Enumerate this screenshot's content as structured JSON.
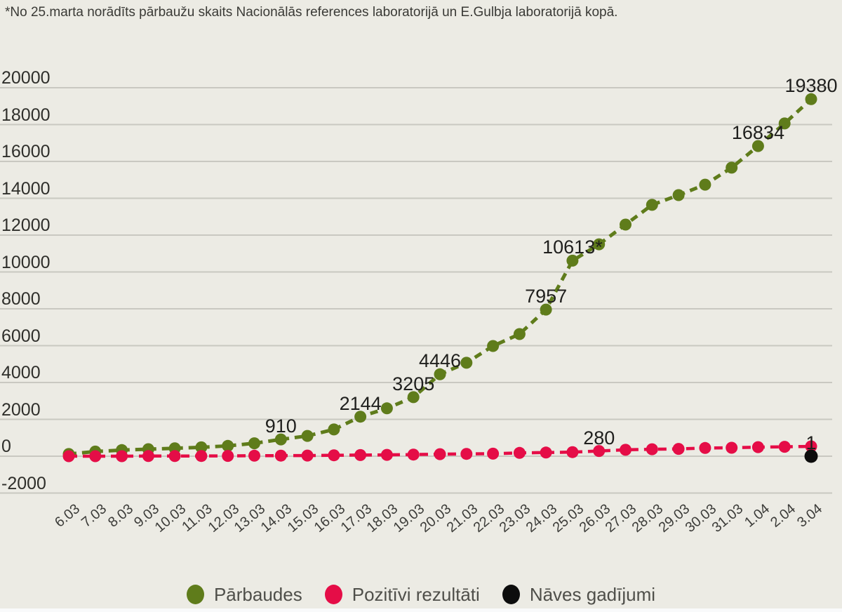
{
  "note": "*No 25.marta norādīts pārbaužu skaits Nacionālās references laboratorijā un E.Gulbja laboratorijā kopā.",
  "colors": {
    "background": "#ecebe4",
    "gridline": "#c9c8c1",
    "parbaudes": "#5f7c1b",
    "pozitivi": "#e50d47",
    "naves": "#0d0d0d",
    "axis_text": "#3b3b38",
    "value_label_text": "#1f1f1d",
    "legend_text": "#4f4f4a"
  },
  "chart_data": {
    "type": "line",
    "title": "",
    "xlabel": "",
    "ylabel": "",
    "ylim": [
      -2000,
      20000
    ],
    "grid": "horizontal",
    "legend_position": "bottom",
    "y_tick_labels": [
      "-2000",
      "0",
      "2000",
      "4000",
      "6000",
      "8000",
      "10000",
      "12000",
      "14000",
      "16000",
      "18000",
      "20000"
    ],
    "categories": [
      "6.03",
      "7.03",
      "8.03",
      "9.03",
      "10.03",
      "11.03",
      "12.03",
      "13.03",
      "14.03",
      "15.03",
      "16.03",
      "17.03",
      "18.03",
      "19.03",
      "20.03",
      "21.03",
      "22.03",
      "23.03",
      "24.03",
      "25.03",
      "26.03",
      "27.03",
      "28.03",
      "29.03",
      "30.03",
      "31.03",
      "1.04",
      "2.04",
      "3.04"
    ],
    "series": [
      {
        "name": "Pārbaudes",
        "key": "parbaudes",
        "color": "#5f7c1b",
        "values": [
          120,
          250,
          330,
          380,
          430,
          480,
          560,
          700,
          910,
          1100,
          1450,
          2144,
          2600,
          3205,
          4446,
          5070,
          5980,
          6630,
          7957,
          10613,
          11500,
          12570,
          13640,
          14170,
          14740,
          15660,
          16834,
          18060,
          19380
        ]
      },
      {
        "name": "Pozitīvi rezultāti",
        "key": "pozitivi",
        "color": "#e50d47",
        "values": [
          1,
          1,
          1,
          6,
          8,
          10,
          17,
          26,
          30,
          34,
          49,
          60,
          71,
          86,
          111,
          124,
          139,
          180,
          197,
          221,
          280,
          347,
          376,
          398,
          446,
          458,
          493,
          509,
          533
        ]
      },
      {
        "name": "Nāves gadījumi",
        "key": "naves",
        "color": "#0d0d0d",
        "values": [
          null,
          null,
          null,
          null,
          null,
          null,
          null,
          null,
          null,
          null,
          null,
          null,
          null,
          null,
          null,
          null,
          null,
          null,
          null,
          null,
          null,
          null,
          null,
          null,
          null,
          null,
          null,
          null,
          1
        ]
      }
    ],
    "annotations": [
      {
        "series_key": "parbaudes",
        "index": 8,
        "text": "910"
      },
      {
        "series_key": "parbaudes",
        "index": 11,
        "text": "2144"
      },
      {
        "series_key": "parbaudes",
        "index": 13,
        "text": "3205"
      },
      {
        "series_key": "parbaudes",
        "index": 14,
        "text": "4446"
      },
      {
        "series_key": "parbaudes",
        "index": 18,
        "text": "7957"
      },
      {
        "series_key": "parbaudes",
        "index": 19,
        "text": "10613*"
      },
      {
        "series_key": "parbaudes",
        "index": 26,
        "text": "16834"
      },
      {
        "series_key": "parbaudes",
        "index": 28,
        "text": "19380"
      },
      {
        "series_key": "pozitivi",
        "index": 20,
        "text": "280"
      },
      {
        "series_key": "naves",
        "index": 28,
        "text": "1"
      }
    ]
  }
}
